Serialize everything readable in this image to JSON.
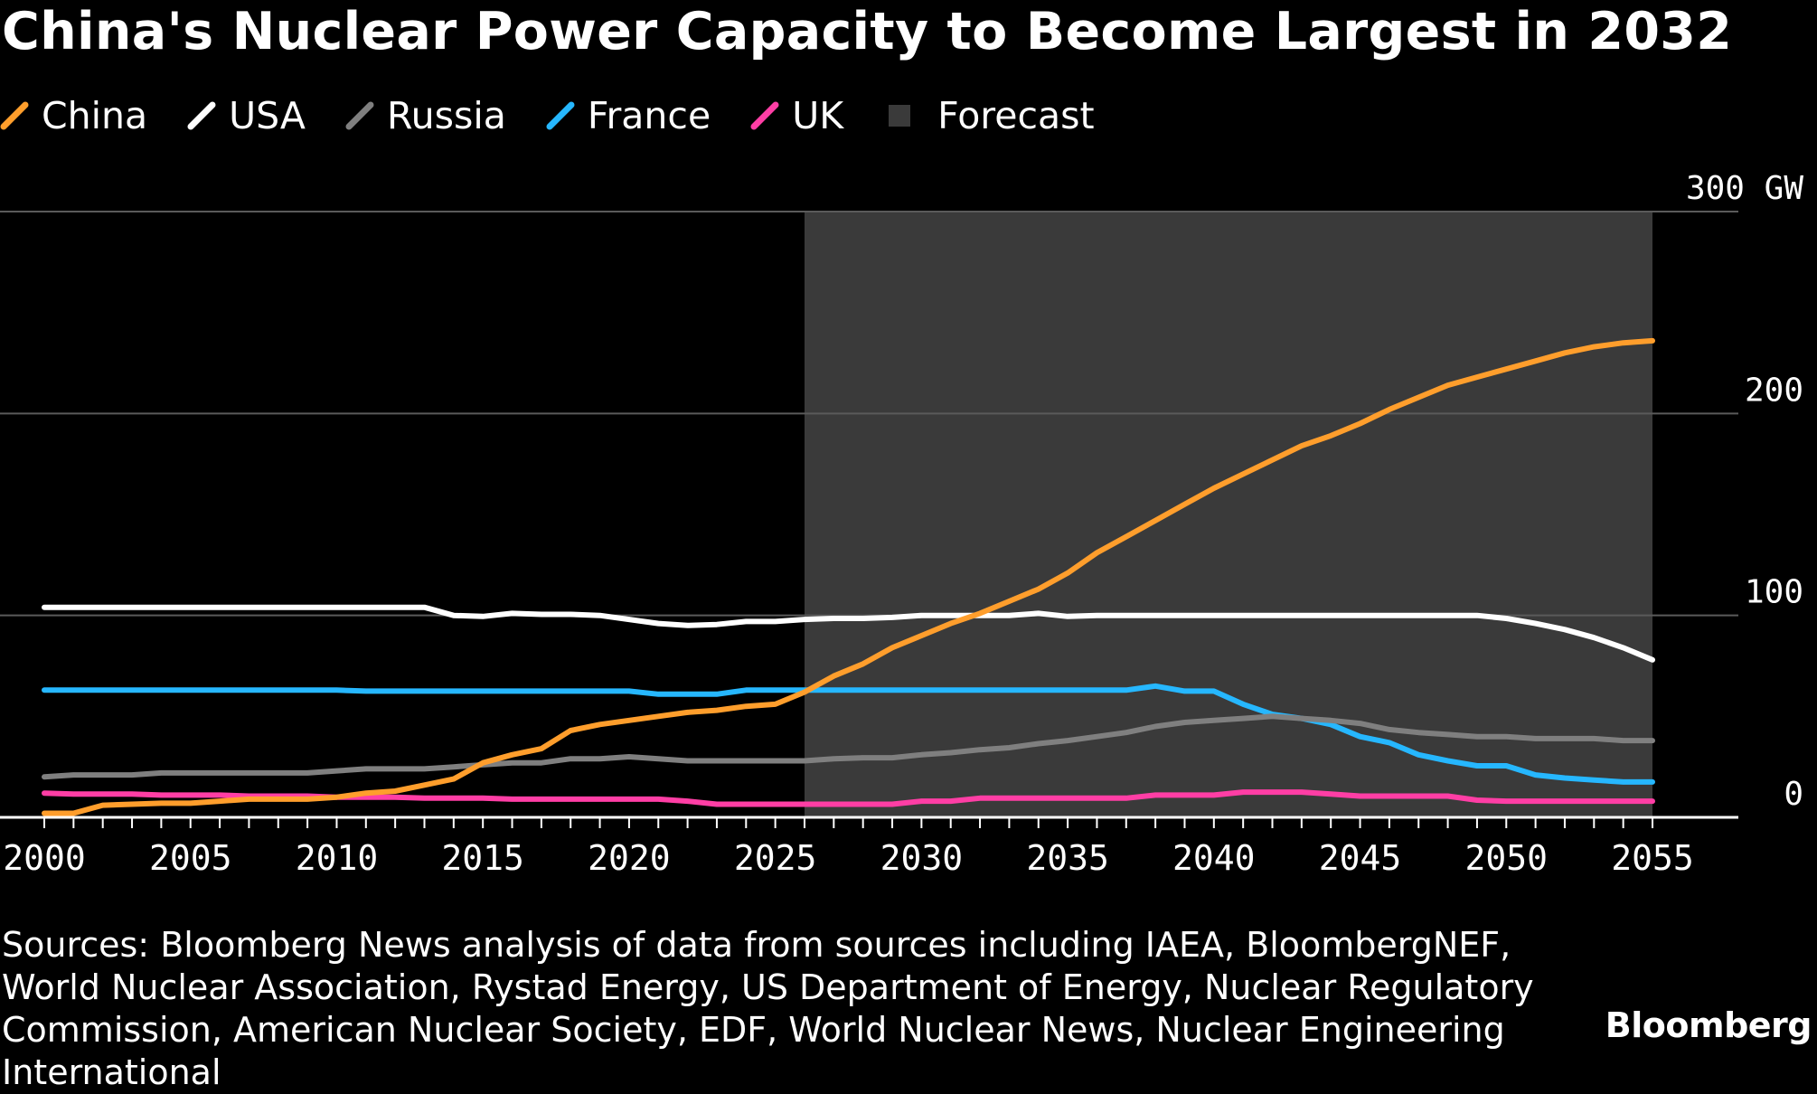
{
  "title": "China's Nuclear Power Capacity to Become Largest in 2032",
  "legend": [
    {
      "label": "China",
      "color": "#ff9e2c",
      "kind": "line"
    },
    {
      "label": "USA",
      "color": "#ffffff",
      "kind": "line"
    },
    {
      "label": "Russia",
      "color": "#7f7f7f",
      "kind": "line"
    },
    {
      "label": "France",
      "color": "#26b7ff",
      "kind": "line"
    },
    {
      "label": "UK",
      "color": "#ff3ea5",
      "kind": "line"
    },
    {
      "label": "Forecast",
      "color": "#3a3a3a",
      "kind": "box"
    }
  ],
  "chart_data": {
    "type": "line",
    "title": "China's Nuclear Power Capacity to Become Largest in 2032",
    "xlabel": "",
    "ylabel": "GW",
    "ylim": [
      0,
      300
    ],
    "xlim": [
      2000,
      2055
    ],
    "yticks": [
      0,
      100,
      200,
      300
    ],
    "ytick_labels": [
      "0",
      "100",
      "200",
      "300 GW"
    ],
    "xticks": [
      2000,
      2005,
      2010,
      2015,
      2020,
      2025,
      2030,
      2035,
      2040,
      2045,
      2050,
      2055
    ],
    "forecast_range": [
      2026,
      2055
    ],
    "series": [
      {
        "name": "China",
        "color": "#ff9e2c",
        "x": [
          2000,
          2001,
          2002,
          2003,
          2004,
          2005,
          2006,
          2007,
          2008,
          2009,
          2010,
          2011,
          2012,
          2013,
          2014,
          2015,
          2016,
          2017,
          2018,
          2019,
          2020,
          2021,
          2022,
          2023,
          2024,
          2025,
          2026,
          2027,
          2028,
          2029,
          2030,
          2031,
          2032,
          2033,
          2034,
          2035,
          2036,
          2037,
          2038,
          2039,
          2040,
          2041,
          2042,
          2043,
          2044,
          2045,
          2046,
          2047,
          2048,
          2049,
          2050,
          2051,
          2052,
          2053,
          2054,
          2055
        ],
        "values": [
          2,
          2,
          6,
          6.5,
          7,
          7,
          8,
          9,
          9,
          9,
          10,
          12,
          13,
          16,
          19,
          27,
          31,
          34,
          43,
          46,
          48,
          50,
          52,
          53,
          55,
          56,
          62,
          70,
          76,
          84,
          90,
          96,
          101,
          107,
          113,
          121,
          131,
          139,
          147,
          155,
          163,
          170,
          177,
          184,
          189,
          195,
          202,
          208,
          214,
          218,
          222,
          226,
          230,
          233,
          235,
          236
        ]
      },
      {
        "name": "USA",
        "color": "#ffffff",
        "x": [
          2000,
          2001,
          2002,
          2003,
          2004,
          2005,
          2006,
          2007,
          2008,
          2009,
          2010,
          2011,
          2012,
          2013,
          2014,
          2015,
          2016,
          2017,
          2018,
          2019,
          2020,
          2021,
          2022,
          2023,
          2024,
          2025,
          2026,
          2027,
          2028,
          2029,
          2030,
          2031,
          2032,
          2033,
          2034,
          2035,
          2036,
          2037,
          2038,
          2039,
          2040,
          2041,
          2042,
          2043,
          2044,
          2045,
          2046,
          2047,
          2048,
          2049,
          2050,
          2051,
          2052,
          2053,
          2054,
          2055
        ],
        "values": [
          104,
          104,
          104,
          104,
          104,
          104,
          104,
          104,
          104,
          104,
          104,
          104,
          104,
          104,
          100,
          99.5,
          101,
          100.5,
          100.5,
          100,
          98,
          96,
          95,
          95.5,
          97,
          97,
          98,
          98.5,
          98.5,
          99,
          100,
          100,
          100,
          100,
          101,
          99.5,
          100,
          100,
          100,
          100,
          100,
          100,
          100,
          100,
          100,
          100,
          100,
          100,
          100,
          100,
          98.5,
          96,
          93,
          89,
          84,
          78
        ]
      },
      {
        "name": "Russia",
        "color": "#7f7f7f",
        "x": [
          2000,
          2001,
          2002,
          2003,
          2004,
          2005,
          2006,
          2007,
          2008,
          2009,
          2010,
          2011,
          2012,
          2013,
          2014,
          2015,
          2016,
          2017,
          2018,
          2019,
          2020,
          2021,
          2022,
          2023,
          2024,
          2025,
          2026,
          2027,
          2028,
          2029,
          2030,
          2031,
          2032,
          2033,
          2034,
          2035,
          2036,
          2037,
          2038,
          2039,
          2040,
          2041,
          2042,
          2043,
          2044,
          2045,
          2046,
          2047,
          2048,
          2049,
          2050,
          2051,
          2052,
          2053,
          2054,
          2055
        ],
        "values": [
          20,
          21,
          21,
          21,
          22,
          22,
          22,
          22,
          22,
          22,
          23,
          24,
          24,
          24,
          25,
          26,
          27,
          27,
          29,
          29,
          30,
          29,
          28,
          28,
          28,
          28,
          28,
          29,
          29.5,
          29.5,
          31,
          32,
          33.5,
          34.5,
          36.5,
          38,
          40,
          42,
          45,
          47,
          48,
          49,
          50,
          49,
          48,
          46.5,
          43.5,
          42,
          41,
          40,
          40,
          39,
          39,
          39,
          38,
          38
        ]
      },
      {
        "name": "France",
        "color": "#26b7ff",
        "x": [
          2000,
          2001,
          2002,
          2003,
          2004,
          2005,
          2006,
          2007,
          2008,
          2009,
          2010,
          2011,
          2012,
          2013,
          2014,
          2015,
          2016,
          2017,
          2018,
          2019,
          2020,
          2021,
          2022,
          2023,
          2024,
          2025,
          2026,
          2027,
          2028,
          2029,
          2030,
          2031,
          2032,
          2033,
          2034,
          2035,
          2036,
          2037,
          2038,
          2039,
          2040,
          2041,
          2042,
          2043,
          2044,
          2045,
          2046,
          2047,
          2048,
          2049,
          2050,
          2051,
          2052,
          2053,
          2054,
          2055
        ],
        "values": [
          63,
          63,
          63,
          63,
          63,
          63,
          63,
          63,
          63,
          63,
          63,
          62.5,
          62.5,
          62.5,
          62.5,
          62.5,
          62.5,
          62.5,
          62.5,
          62.5,
          62.5,
          61,
          61,
          61,
          63,
          63,
          63,
          63,
          63,
          63,
          63,
          63,
          63,
          63,
          63,
          63,
          63,
          63,
          65,
          62.5,
          62.5,
          56,
          51,
          49,
          46,
          40,
          37,
          31,
          28,
          25.5,
          25.5,
          21,
          19.5,
          18.5,
          17.5,
          17.5
        ]
      },
      {
        "name": "UK",
        "color": "#ff3ea5",
        "x": [
          2000,
          2001,
          2002,
          2003,
          2004,
          2005,
          2006,
          2007,
          2008,
          2009,
          2010,
          2011,
          2012,
          2013,
          2014,
          2015,
          2016,
          2017,
          2018,
          2019,
          2020,
          2021,
          2022,
          2023,
          2024,
          2025,
          2026,
          2027,
          2028,
          2029,
          2030,
          2031,
          2032,
          2033,
          2034,
          2035,
          2036,
          2037,
          2038,
          2039,
          2040,
          2041,
          2042,
          2043,
          2044,
          2045,
          2046,
          2047,
          2048,
          2049,
          2050,
          2051,
          2052,
          2053,
          2054,
          2055
        ],
        "values": [
          12,
          11.5,
          11.5,
          11.5,
          11,
          11,
          11,
          10.5,
          10.5,
          10.5,
          10,
          10,
          10,
          9.5,
          9.5,
          9.5,
          9,
          9,
          9,
          9,
          9,
          9,
          8,
          6.5,
          6.5,
          6.5,
          6.5,
          6.5,
          6.5,
          6.5,
          8,
          8,
          9.5,
          9.5,
          9.5,
          9.5,
          9.5,
          9.5,
          11,
          11,
          11,
          12.5,
          12.5,
          12.5,
          11.5,
          10.5,
          10.5,
          10.5,
          10.5,
          8.5,
          8,
          8,
          8,
          8,
          8,
          8
        ]
      }
    ]
  },
  "sources": "Sources: Bloomberg News analysis of data from sources including IAEA, BloombergNEF, World Nuclear Association, Rystad Energy, US Department of Energy, Nuclear Regulatory Commission, American Nuclear Society, EDF, World Nuclear News, Nuclear Engineering International",
  "brand": "Bloomberg"
}
